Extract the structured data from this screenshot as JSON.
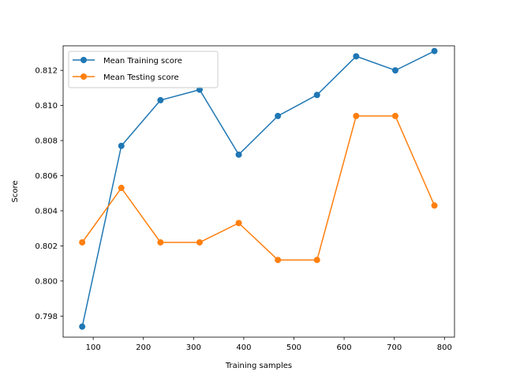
{
  "chart_data": {
    "type": "line",
    "title": "",
    "xlabel": "Training samples",
    "ylabel": "Score",
    "xlim": [
      40,
      820
    ],
    "ylim": [
      0.7968,
      0.8134
    ],
    "x_ticks": [
      100,
      200,
      300,
      400,
      500,
      600,
      700,
      800
    ],
    "x_tick_labels": [
      "100",
      "200",
      "300",
      "400",
      "500",
      "600",
      "700",
      "800"
    ],
    "y_ticks": [
      0.798,
      0.8,
      0.802,
      0.804,
      0.806,
      0.808,
      0.81,
      0.812
    ],
    "y_tick_labels": [
      "0.798",
      "0.800",
      "0.802",
      "0.804",
      "0.806",
      "0.808",
      "0.810",
      "0.812"
    ],
    "grid": false,
    "legend_position": "upper left",
    "x": [
      78,
      156,
      234,
      312,
      390,
      468,
      546,
      624,
      702,
      780
    ],
    "series": [
      {
        "name": "Mean Training score",
        "color": "#1f77b4",
        "values": [
          0.7974,
          0.8077,
          0.8103,
          0.8109,
          0.8072,
          0.8094,
          0.8106,
          0.8128,
          0.812,
          0.8131
        ]
      },
      {
        "name": "Mean Testing score",
        "color": "#ff7f0e",
        "values": [
          0.8022,
          0.8053,
          0.8022,
          0.8022,
          0.8033,
          0.8012,
          0.8012,
          0.8094,
          0.8094,
          0.8043
        ]
      }
    ]
  }
}
